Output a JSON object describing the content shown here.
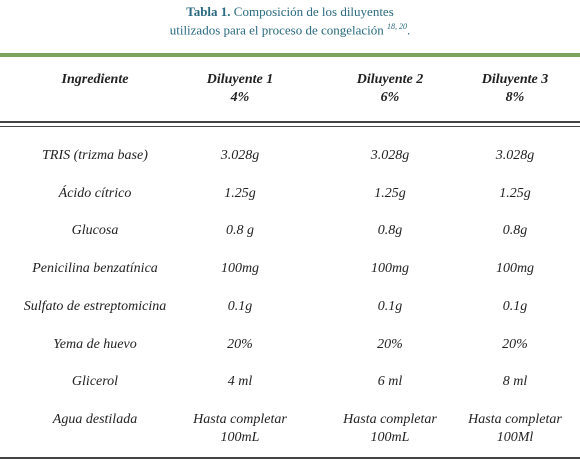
{
  "caption": {
    "label": "Tabla 1.",
    "text_line1": "Composición de los diluyentes",
    "text_line2": "utilizados para el proceso de congelación",
    "refs": "18,  20",
    "end": "."
  },
  "table": {
    "header": [
      [
        "Ingrediente"
      ],
      [
        "Diluyente 1",
        "4%"
      ],
      [
        "Diluyente 2",
        "6%"
      ],
      [
        "Diluyente 3",
        "8%"
      ]
    ],
    "rows": [
      [
        [
          "TRIS (trizma base)"
        ],
        [
          "3.028g"
        ],
        [
          "3.028g"
        ],
        [
          "3.028g"
        ]
      ],
      [
        [
          "Ácido cítrico"
        ],
        [
          "1.25g"
        ],
        [
          "1.25g"
        ],
        [
          "1.25g"
        ]
      ],
      [
        [
          "Glucosa"
        ],
        [
          "0.8 g"
        ],
        [
          "0.8g"
        ],
        [
          "0.8g"
        ]
      ],
      [
        [
          "Penicilina benzatínica"
        ],
        [
          "100mg"
        ],
        [
          "100mg"
        ],
        [
          "100mg"
        ]
      ],
      [
        [
          "Sulfato de estreptomicina"
        ],
        [
          "0.1g"
        ],
        [
          "0.1g"
        ],
        [
          "0.1g"
        ]
      ],
      [
        [
          "Yema de huevo"
        ],
        [
          "20%"
        ],
        [
          "20%"
        ],
        [
          "20%"
        ]
      ],
      [
        [
          "Glicerol"
        ],
        [
          "4 ml"
        ],
        [
          "6 ml"
        ],
        [
          "8 ml"
        ]
      ],
      [
        [
          "Agua destilada"
        ],
        [
          "Hasta completar",
          "100mL"
        ],
        [
          "Hasta completar",
          "100mL"
        ],
        [
          "Hasta completar",
          "100Ml"
        ]
      ]
    ]
  }
}
